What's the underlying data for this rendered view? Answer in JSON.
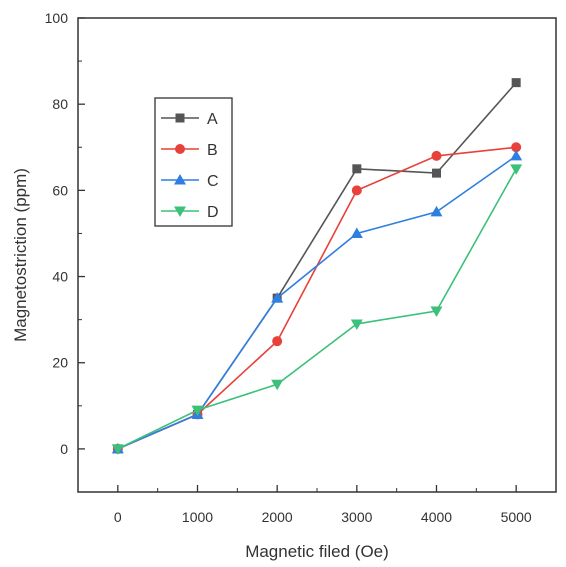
{
  "chart_data": {
    "type": "line",
    "xlabel": "Magnetic filed (Oe)",
    "ylabel": "Magnetostriction (ppm)",
    "x": [
      0,
      1000,
      2000,
      3000,
      4000,
      5000
    ],
    "xlim": [
      -500,
      5500
    ],
    "ylim": [
      -10,
      100
    ],
    "xticks": [
      "0",
      "1000",
      "2000",
      "3000",
      "4000",
      "5000"
    ],
    "yticks": [
      "0",
      "20",
      "40",
      "60",
      "80",
      "100"
    ],
    "grid": false,
    "legend_position": "upper-left",
    "series": [
      {
        "name": "A",
        "values": [
          0,
          8,
          35,
          65,
          64,
          85
        ],
        "color": "#555555",
        "marker": "square"
      },
      {
        "name": "B",
        "values": [
          0,
          8,
          25,
          60,
          68,
          70
        ],
        "color": "#e8413a",
        "marker": "circle"
      },
      {
        "name": "C",
        "values": [
          0,
          8,
          35,
          50,
          55,
          68
        ],
        "color": "#2f7fe0",
        "marker": "triangle-up"
      },
      {
        "name": "D",
        "values": [
          0,
          9,
          15,
          29,
          32,
          65
        ],
        "color": "#3cc07a",
        "marker": "triangle-down"
      }
    ]
  }
}
